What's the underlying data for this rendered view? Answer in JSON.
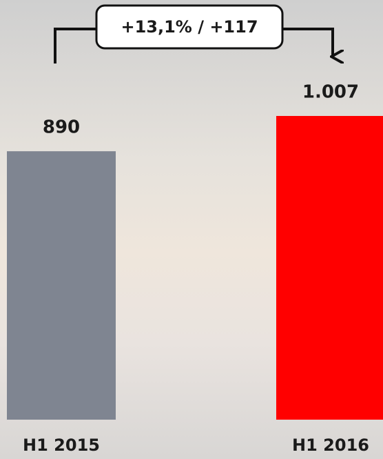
{
  "chart_data": {
    "type": "bar",
    "categories": [
      "H1 2015",
      "H1 2016"
    ],
    "values": [
      890,
      1007
    ],
    "value_labels": [
      "890",
      "1.007"
    ],
    "colors": [
      "#7f8591",
      "#ff0000"
    ],
    "annotation": "+13,1% / +117"
  }
}
